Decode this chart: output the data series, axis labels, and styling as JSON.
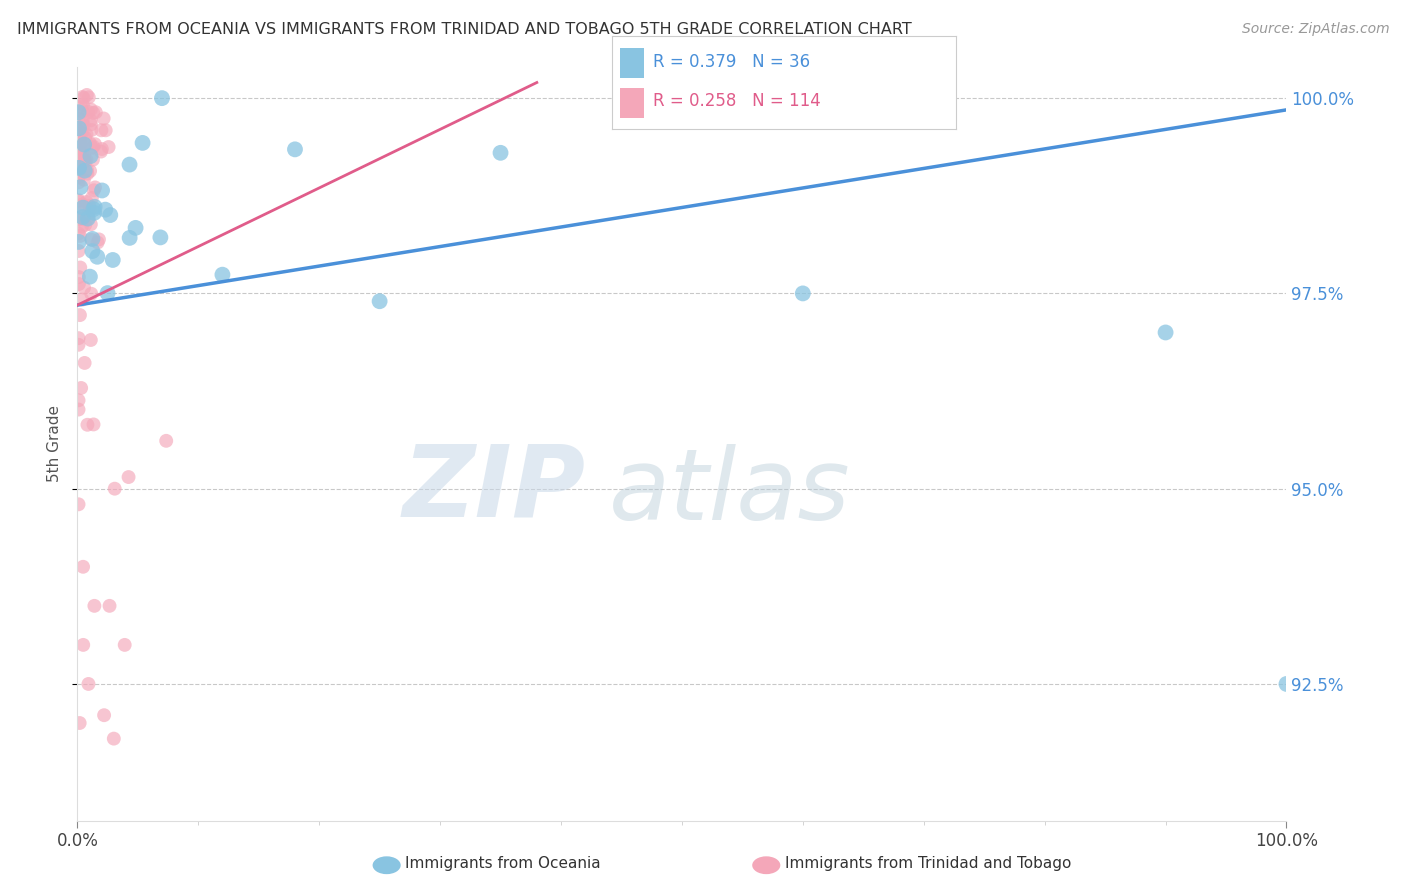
{
  "title": "IMMIGRANTS FROM OCEANIA VS IMMIGRANTS FROM TRINIDAD AND TOBAGO 5TH GRADE CORRELATION CHART",
  "source": "Source: ZipAtlas.com",
  "ylabel": "5th Grade",
  "blue_color": "#89c4e1",
  "pink_color": "#f4a7b9",
  "blue_line_color": "#4a90d9",
  "pink_line_color": "#e05c8a",
  "background_color": "#ffffff",
  "watermark_zip": "ZIP",
  "watermark_atlas": "atlas",
  "xmin": 0.0,
  "xmax": 1.0,
  "ymin": 0.9075,
  "ymax": 1.004,
  "yticks": [
    0.925,
    0.95,
    0.975,
    1.0
  ],
  "ytick_labels": [
    "92.5%",
    "95.0%",
    "97.5%",
    "100.0%"
  ],
  "xtick_labels": [
    "0.0%",
    "100.0%"
  ],
  "legend_blue_text": "R = 0.379   N = 36",
  "legend_pink_text": "R = 0.258   N = 114",
  "blue_line_x0": 0.0,
  "blue_line_y0": 0.9735,
  "blue_line_x1": 1.0,
  "blue_line_y1": 0.9985,
  "pink_line_x0": 0.0,
  "pink_line_y0": 0.9735,
  "pink_line_x1": 0.38,
  "pink_line_y1": 1.002
}
